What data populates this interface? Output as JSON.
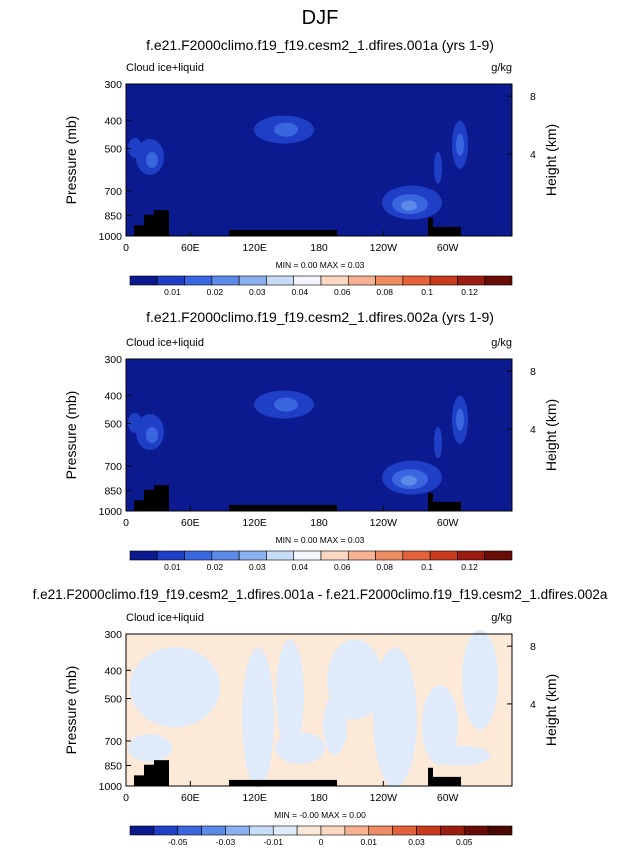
{
  "main_title": "DJF",
  "chart_data": [
    {
      "type": "heatmap",
      "title": "f.e21.F2000climo.f19_f19.cesm2_1.dfires.001a (yrs 1-9)",
      "variable_label": "Cloud ice+liquid",
      "units_label": "g/kg",
      "ylabel": "Pressure (mb)",
      "y2label": "Height (km)",
      "yticks": [
        "300",
        "400",
        "500",
        "700",
        "850",
        "1000"
      ],
      "y2ticks": [
        "8",
        "4"
      ],
      "xticks": [
        "0",
        "60E",
        "120E",
        "180",
        "120W",
        "60W"
      ],
      "stats": "MIN =   0.00   MAX =   0.03",
      "colorbar_labels": [
        "0.01",
        "0.02",
        "0.03",
        "0.04",
        "0.06",
        "0.08",
        "0.1",
        "0.12"
      ],
      "colors": [
        "#0b1a8f",
        "#1f3fc6",
        "#3a66e0",
        "#5b8ae8",
        "#8bb0ef",
        "#c7dcf6",
        "#f2f5fb",
        "#fbd8c2",
        "#f7b291",
        "#f08c64",
        "#e3623b",
        "#c83b1d",
        "#9b1d0f",
        "#6a0c06"
      ]
    },
    {
      "type": "heatmap",
      "title": "f.e21.F2000climo.f19_f19.cesm2_1.dfires.002a (yrs 1-9)",
      "variable_label": "Cloud ice+liquid",
      "units_label": "g/kg",
      "ylabel": "Pressure (mb)",
      "y2label": "Height (km)",
      "yticks": [
        "300",
        "400",
        "500",
        "700",
        "850",
        "1000"
      ],
      "y2ticks": [
        "8",
        "4"
      ],
      "xticks": [
        "0",
        "60E",
        "120E",
        "180",
        "120W",
        "60W"
      ],
      "stats": "MIN =   0.00   MAX =   0.03",
      "colorbar_labels": [
        "0.01",
        "0.02",
        "0.03",
        "0.04",
        "0.06",
        "0.08",
        "0.1",
        "0.12"
      ],
      "colors": [
        "#0b1a8f",
        "#1f3fc6",
        "#3a66e0",
        "#5b8ae8",
        "#8bb0ef",
        "#c7dcf6",
        "#f2f5fb",
        "#fbd8c2",
        "#f7b291",
        "#f08c64",
        "#e3623b",
        "#c83b1d",
        "#9b1d0f",
        "#6a0c06"
      ]
    },
    {
      "type": "heatmap",
      "title": "f.e21.F2000climo.f19_f19.cesm2_1.dfires.001a - f.e21.F2000climo.f19_f19.cesm2_1.dfires.002a",
      "variable_label": "Cloud ice+liquid",
      "units_label": "g/kg",
      "ylabel": "Pressure (mb)",
      "y2label": "Height (km)",
      "yticks": [
        "300",
        "400",
        "500",
        "700",
        "850",
        "1000"
      ],
      "y2ticks": [
        "8",
        "4"
      ],
      "xticks": [
        "0",
        "60E",
        "120E",
        "180",
        "120W",
        "60W"
      ],
      "stats": "MIN =  -0.00   MAX =   0.00",
      "colorbar_labels": [
        "-0.05",
        "-0.03",
        "-0.01",
        "0",
        "0.01",
        "0.03",
        "0.05"
      ],
      "colors": [
        "#0b1a8f",
        "#1f3fc6",
        "#3a66e0",
        "#5b8ae8",
        "#8bb0ef",
        "#c7dcf6",
        "#dfeafb",
        "#fde9d8",
        "#fbd8c2",
        "#f7b291",
        "#f08c64",
        "#e3623b",
        "#c83b1d",
        "#9b1d0f",
        "#6a0c06",
        "#4a0803"
      ]
    }
  ]
}
